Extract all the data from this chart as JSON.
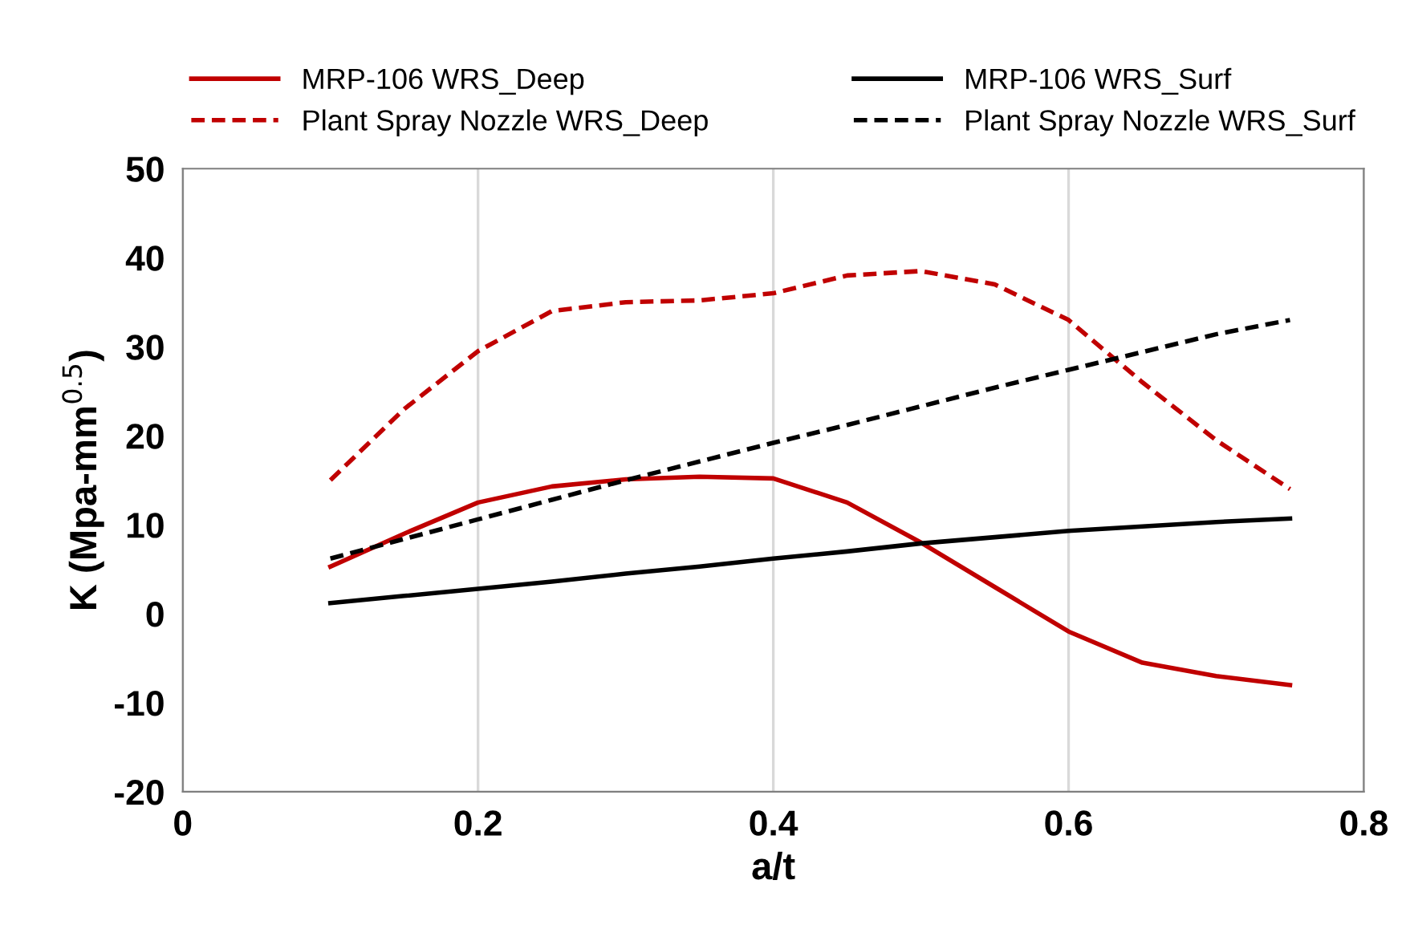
{
  "chart_data": {
    "type": "line",
    "xlabel": "a/t",
    "ylabel": "K (Mpa-mm$^{0.5}$)",
    "x": [
      0.1,
      0.15,
      0.2,
      0.25,
      0.3,
      0.35,
      0.4,
      0.45,
      0.5,
      0.55,
      0.6,
      0.65,
      0.7,
      0.75
    ],
    "series": [
      {
        "name": "MRP-106 WRS_Deep",
        "color": "#c00000",
        "line_style": "solid",
        "values": [
          5.3,
          9,
          12.5,
          14.3,
          15.1,
          15.4,
          15.2,
          12.5,
          8,
          3,
          -2,
          -5.5,
          -7,
          -8
        ]
      },
      {
        "name": "MRP-106 WRS_Surf",
        "color": "#000000",
        "line_style": "solid",
        "values": [
          1.2,
          2,
          2.8,
          3.6,
          4.5,
          5.3,
          6.2,
          7,
          7.9,
          8.6,
          9.3,
          9.8,
          10.3,
          10.7
        ]
      },
      {
        "name": "Plant Spray Nozzle WRS_Deep",
        "color": "#c00000",
        "line_style": "dashed",
        "values": [
          15,
          23,
          29.5,
          34,
          35,
          35.2,
          36,
          38,
          38.5,
          37,
          33,
          26,
          19.5,
          14
        ]
      },
      {
        "name": "Plant Spray Nozzle WRS_Surf",
        "color": "#000000",
        "line_style": "dashed",
        "values": [
          6.2,
          8.4,
          10.6,
          12.8,
          15,
          17.1,
          19.2,
          21.2,
          23.3,
          25.4,
          27.4,
          29.4,
          31.4,
          33
        ]
      }
    ],
    "xlim": [
      0,
      0.8
    ],
    "xticks": [
      0,
      0.2,
      0.4,
      0.6,
      0.8
    ],
    "ylim": [
      -20,
      50
    ],
    "yticks": [
      -20,
      -10,
      0,
      10,
      20,
      30,
      40,
      50
    ],
    "grid": "x",
    "legend": "top",
    "marker": "none"
  }
}
